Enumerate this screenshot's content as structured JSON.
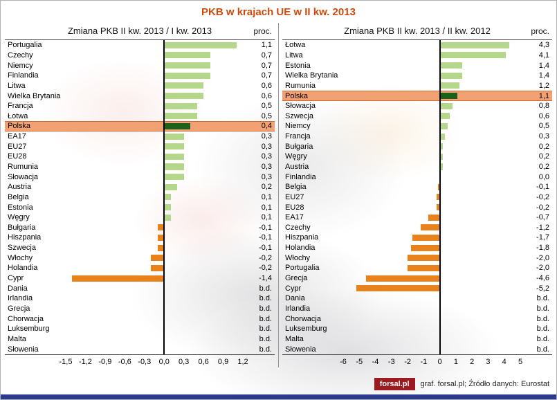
{
  "title": "PKB w krajach UE w II kw. 2013",
  "footer": {
    "logo": "forsal.pl",
    "credit": "graf. forsal.pl; Źródło danych: Eurostat"
  },
  "colors": {
    "title_text": "#cd4a0d",
    "positive_bar": "#b5d78c",
    "negative_bar": "#e8821c",
    "highlight_bar": "#1b611b",
    "highlight_row_bg": "#f2a173",
    "highlight_row_border": "#cd6a36",
    "zero_axis": "#000000",
    "bottom_strip": "#2c3a8e",
    "logo_bg": "#9c1b20"
  },
  "chart_data": [
    {
      "type": "bar",
      "orientation": "horizontal",
      "title": "Zmiana PKB II kw. 2013 / I kw. 2013",
      "unit_label": "proc.",
      "xlim": [
        -1.5,
        1.2
      ],
      "xtick_values": [
        -1.5,
        -1.2,
        -0.9,
        -0.6,
        -0.3,
        0,
        0.3,
        0.6,
        0.9,
        1.2
      ],
      "xticks": [
        "-1,5",
        "-1,2",
        "-0,9",
        "-0,6",
        "-0,3",
        "0,0",
        "0,3",
        "0,6",
        "0,9",
        "1,2"
      ],
      "highlight": "Polska",
      "grid": false,
      "categories": [
        "Portugalia",
        "Czechy",
        "Niemcy",
        "Finlandia",
        "Litwa",
        "Wielka Brytania",
        "Francja",
        "Łotwa",
        "Polska",
        "EA17",
        "EU27",
        "EU28",
        "Rumunia",
        "Słowacja",
        "Austria",
        "Belgia",
        "Estonia",
        "Węgry",
        "Bułgaria",
        "Hiszpania",
        "Szwecja",
        "Włochy",
        "Holandia",
        "Cypr",
        "Dania",
        "Irlandia",
        "Grecja",
        "Chorwacja",
        "Luksemburg",
        "Malta",
        "Słowenia"
      ],
      "values": [
        1.1,
        0.7,
        0.7,
        0.7,
        0.6,
        0.6,
        0.5,
        0.5,
        0.4,
        0.3,
        0.3,
        0.3,
        0.3,
        0.3,
        0.2,
        0.1,
        0.1,
        0.1,
        -0.1,
        -0.1,
        -0.1,
        -0.2,
        -0.2,
        -1.4,
        null,
        null,
        null,
        null,
        null,
        null,
        null
      ],
      "value_labels": [
        "1,1",
        "0,7",
        "0,7",
        "0,7",
        "0,6",
        "0,6",
        "0,5",
        "0,5",
        "0,4",
        "0,3",
        "0,3",
        "0,3",
        "0,3",
        "0,3",
        "0,2",
        "0,1",
        "0,1",
        "0,1",
        "-0,1",
        "-0,1",
        "-0,1",
        "-0,2",
        "-0,2",
        "-1,4",
        "b.d.",
        "b.d.",
        "b.d.",
        "b.d.",
        "b.d.",
        "b.d.",
        "b.d."
      ]
    },
    {
      "type": "bar",
      "orientation": "horizontal",
      "title": "Zmiana PKB II kw. 2013 / II kw. 2012",
      "unit_label": "proc.",
      "xlim": [
        -6,
        5
      ],
      "xtick_values": [
        -6,
        -5,
        -4,
        -3,
        -2,
        -1,
        0,
        1,
        2,
        3,
        4,
        5
      ],
      "xticks": [
        "-6",
        "-5",
        "-4",
        "-3",
        "-2",
        "-1",
        "0",
        "1",
        "2",
        "3",
        "4",
        "5"
      ],
      "highlight": "Polska",
      "grid": false,
      "categories": [
        "Łotwa",
        "Litwa",
        "Estonia",
        "Wielka Brytania",
        "Rumunia",
        "Polska",
        "Słowacja",
        "Szwecja",
        "Niemcy",
        "Francja",
        "Bułgaria",
        "Węgry",
        "Austria",
        "Finlandia",
        "Belgia",
        "EU27",
        "EU28",
        "EA17",
        "Czechy",
        "Hiszpania",
        "Holandia",
        "Włochy",
        "Portugalia",
        "Grecja",
        "Cypr",
        "Dania",
        "Irlandia",
        "Chorwacja",
        "Luksemburg",
        "Malta",
        "Słowenia"
      ],
      "values": [
        4.3,
        4.1,
        1.4,
        1.4,
        1.2,
        1.1,
        0.8,
        0.6,
        0.5,
        0.3,
        0.2,
        0.2,
        0.2,
        0.0,
        -0.1,
        -0.2,
        -0.2,
        -0.7,
        -1.2,
        -1.7,
        -1.8,
        -2.0,
        -2.0,
        -4.6,
        -5.2,
        null,
        null,
        null,
        null,
        null,
        null
      ],
      "value_labels": [
        "4,3",
        "4,1",
        "1,4",
        "1,4",
        "1,2",
        "1,1",
        "0,8",
        "0,6",
        "0,5",
        "0,3",
        "0,2",
        "0,2",
        "0,2",
        "0,0",
        "-0,1",
        "-0,2",
        "-0,2",
        "-0,7",
        "-1,2",
        "-1,7",
        "-1,8",
        "-2,0",
        "-2,0",
        "-4,6",
        "-5,2",
        "b.d.",
        "b.d.",
        "b.d.",
        "b.d.",
        "b.d.",
        "b.d."
      ]
    }
  ]
}
